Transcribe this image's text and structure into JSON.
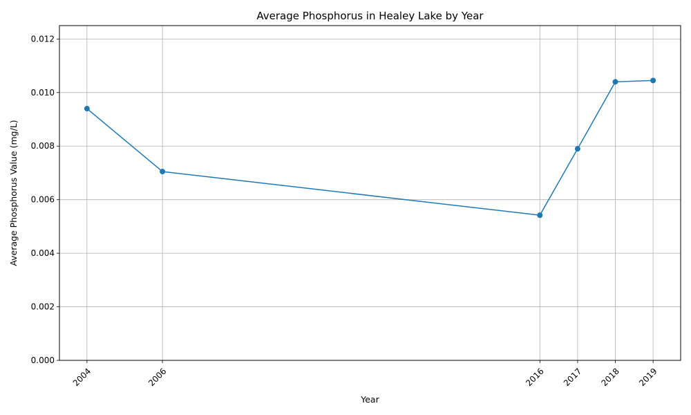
{
  "chart_data": {
    "type": "line",
    "title": "Average Phosphorus in Healey Lake by Year",
    "xlabel": "Year",
    "ylabel": "Average Phosphorus Value (mg/L)",
    "x": [
      2004,
      2006,
      2016,
      2017,
      2018,
      2019
    ],
    "x_tick_labels": [
      "2004",
      "2006",
      "2016",
      "2017",
      "2018",
      "2019"
    ],
    "series": [
      {
        "values": [
          0.0094,
          0.00705,
          0.00542,
          0.0079,
          0.0104,
          0.01045
        ]
      }
    ],
    "xlim": [
      2003.27,
      2019.73
    ],
    "ylim": [
      0,
      0.0125
    ],
    "y_ticks": [
      0,
      0.002,
      0.004,
      0.006,
      0.008,
      0.01,
      0.012
    ],
    "y_tick_labels": [
      "0.000",
      "0.002",
      "0.004",
      "0.006",
      "0.008",
      "0.010",
      "0.012"
    ],
    "grid": true,
    "line_color": "#1f77b4"
  }
}
